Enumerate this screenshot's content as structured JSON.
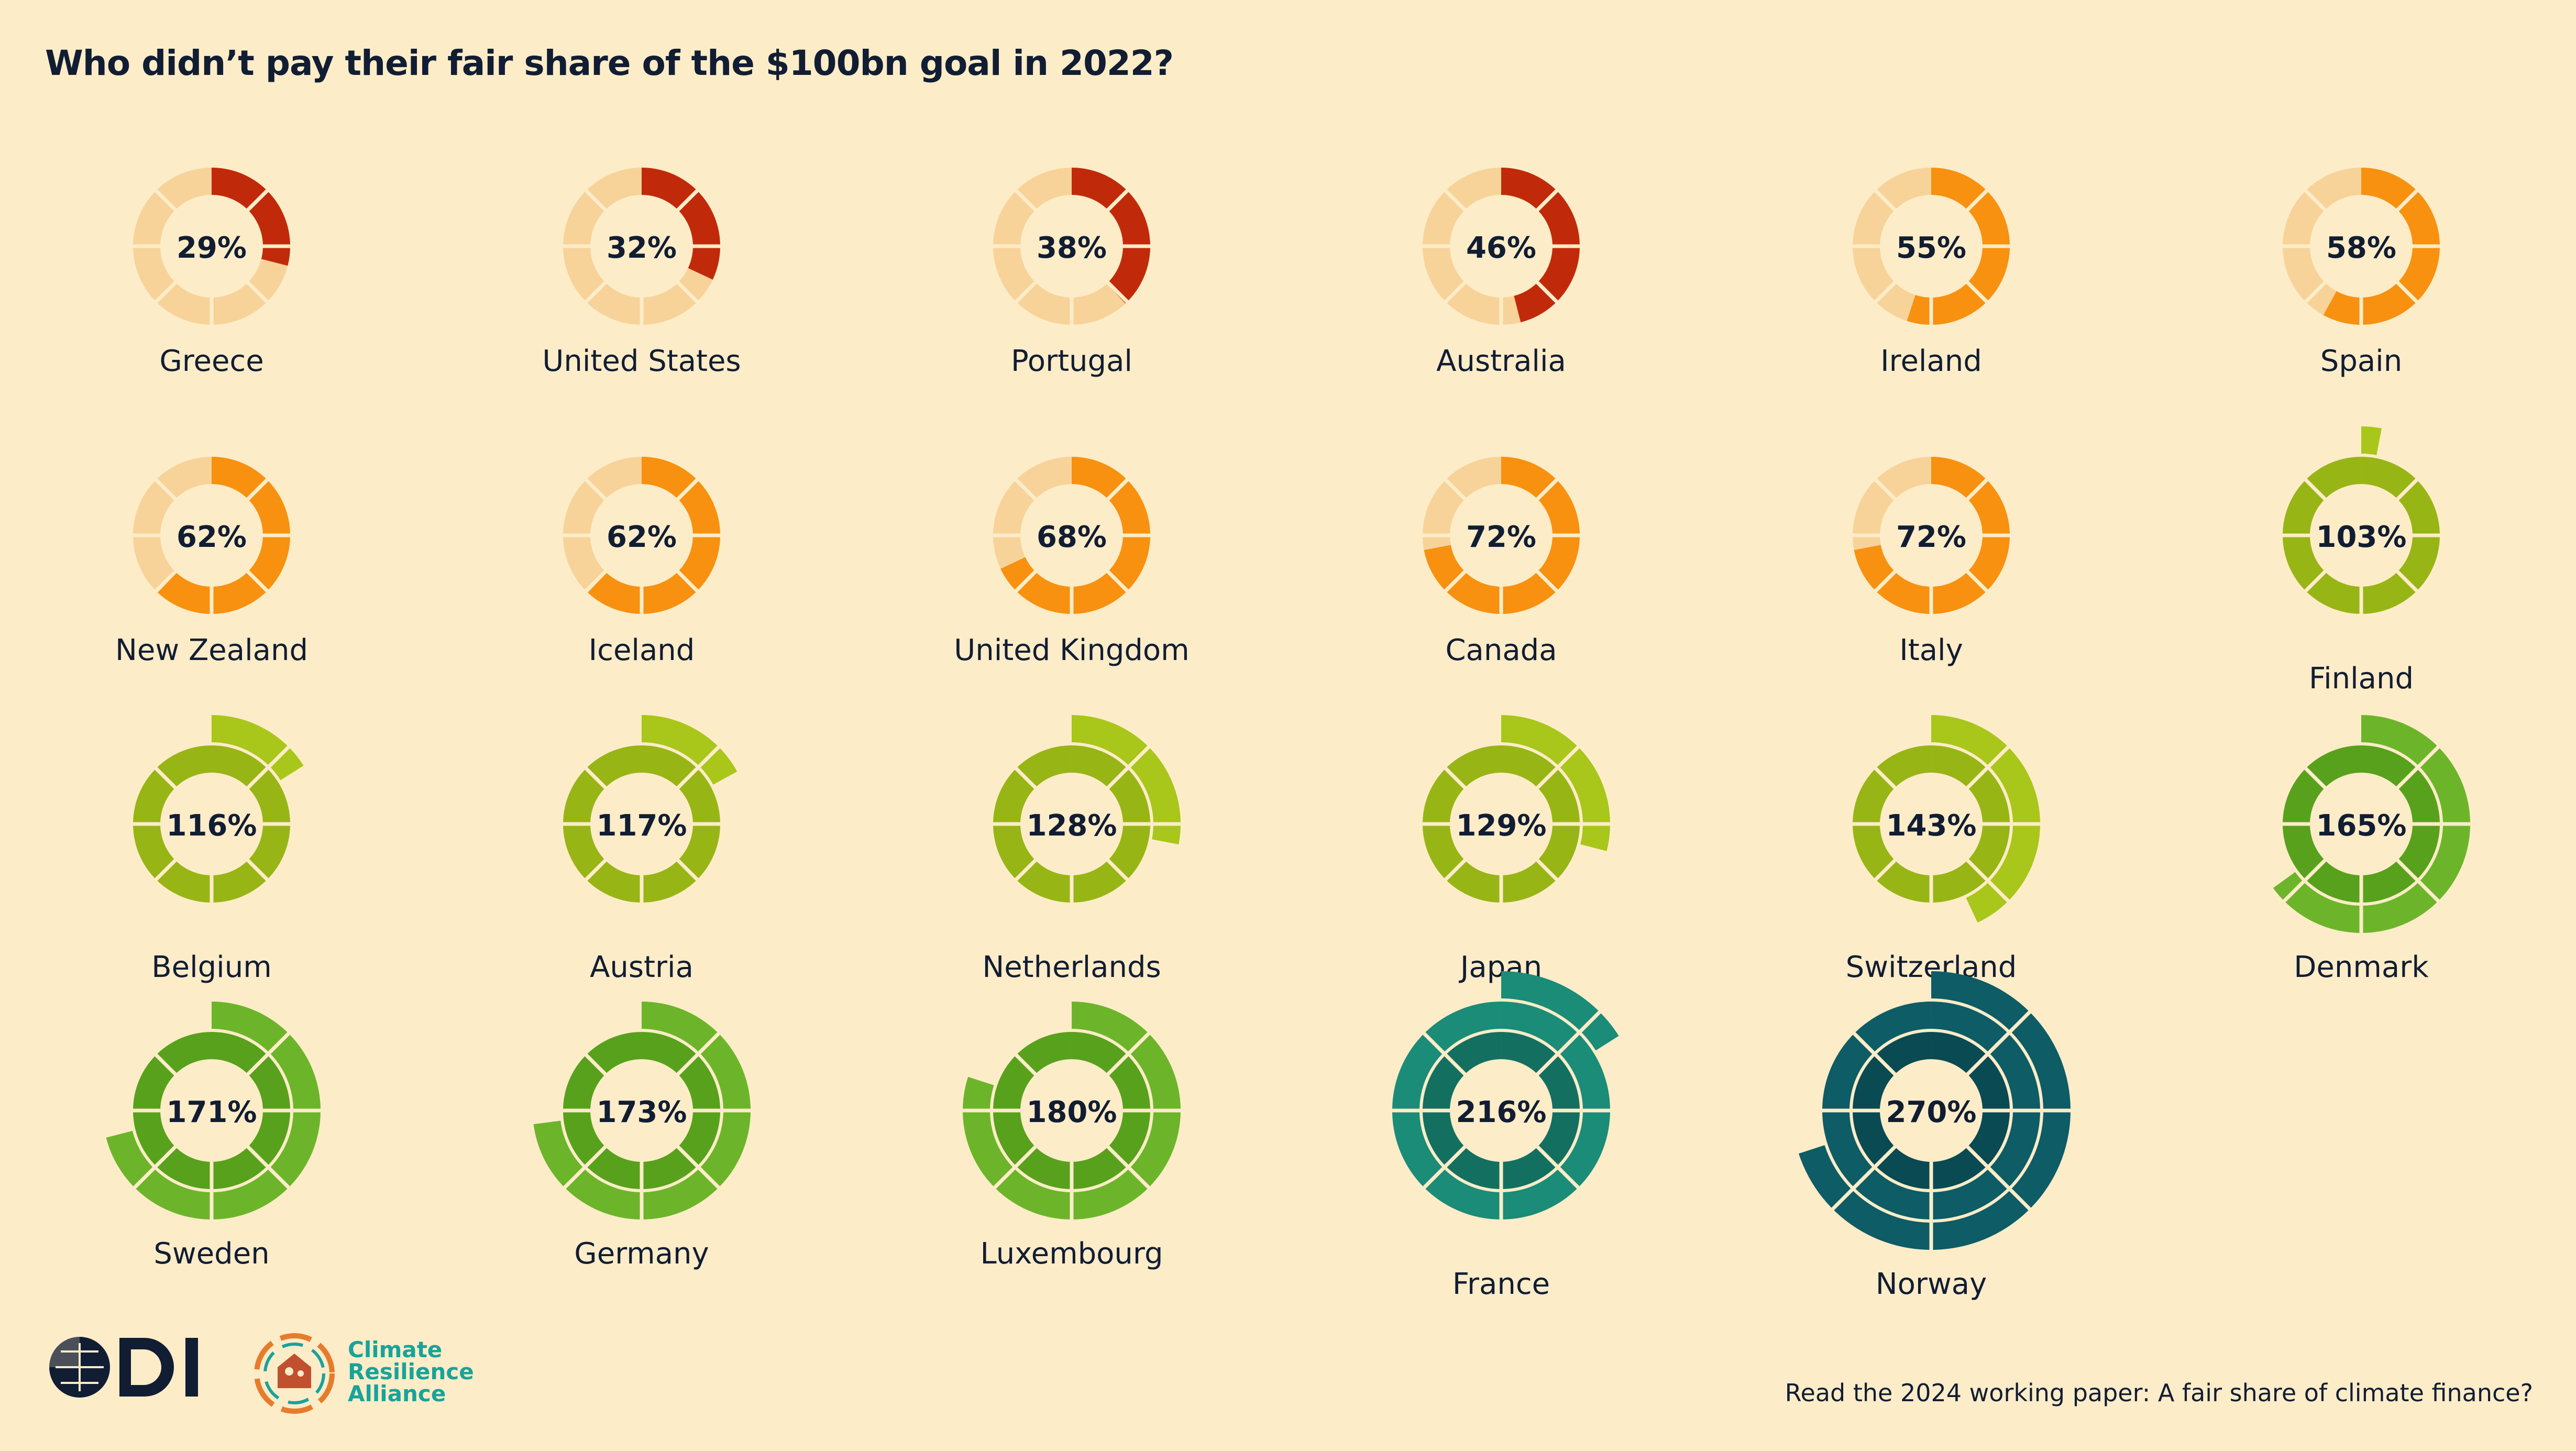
{
  "title": "Who didn’t pay their fair share of the $100bn goal in 2022?",
  "footer": "Read the 2024 working paper: A fair share of climate finance?",
  "logos": {
    "odi": "ODI",
    "cra_lines": [
      "Climate",
      "Resilience",
      "Alliance"
    ]
  },
  "chart_data": {
    "type": "radial-progress",
    "unit": "%",
    "items": [
      {
        "country": "Greece",
        "label": "29%",
        "value": 29
      },
      {
        "country": "United States",
        "label": "32%",
        "value": 32
      },
      {
        "country": "Portugal",
        "label": "38%",
        "value": 38
      },
      {
        "country": "Australia",
        "label": "46%",
        "value": 46
      },
      {
        "country": "Ireland",
        "label": "55%",
        "value": 55
      },
      {
        "country": "Spain",
        "label": "58%",
        "value": 58
      },
      {
        "country": "New Zealand",
        "label": "62%",
        "value": 62
      },
      {
        "country": "Iceland",
        "label": "62%",
        "value": 62
      },
      {
        "country": "United Kingdom",
        "label": "68%",
        "value": 68
      },
      {
        "country": "Canada",
        "label": "72%",
        "value": 72
      },
      {
        "country": "Italy",
        "label": "72%",
        "value": 72
      },
      {
        "country": "Finland",
        "label": "103%",
        "value": 103
      },
      {
        "country": "Belgium",
        "label": "116%",
        "value": 116
      },
      {
        "country": "Austria",
        "label": "117%",
        "value": 117
      },
      {
        "country": "Netherlands",
        "label": "128%",
        "value": 128
      },
      {
        "country": "Japan",
        "label": "129%",
        "value": 129
      },
      {
        "country": "Switzerland",
        "label": "143%",
        "value": 143
      },
      {
        "country": "Denmark",
        "label": "165%",
        "value": 165
      },
      {
        "country": "Sweden",
        "label": "171%",
        "value": 171
      },
      {
        "country": "Germany",
        "label": "173%",
        "value": 173
      },
      {
        "country": "Luxembourg",
        "label": "180%",
        "value": 180
      },
      {
        "country": "France",
        "label": "216%",
        "value": 216
      },
      {
        "country": "Norway",
        "label": "270%",
        "value": 270
      }
    ],
    "colors": {
      "background": "#fdecc8",
      "empty_ring": "#f7d39a",
      "dark_red": "#c02a0a",
      "orange_red": "#e8580c",
      "orange": "#f7910f",
      "lime": "#a9c61a",
      "green": "#6cb52a",
      "teal": "#1a8c78",
      "dark_teal": "#0d5c66",
      "text": "#111d33"
    }
  }
}
